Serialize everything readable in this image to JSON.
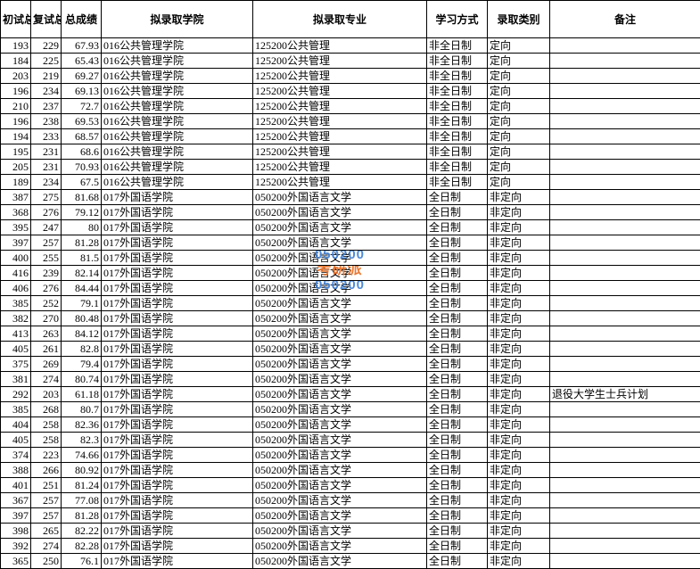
{
  "columns": [
    "初试总成绩",
    "复试总成绩",
    "总成绩",
    "拟录取学院",
    "拟录取专业",
    "学习方式",
    "录取类别",
    "备注"
  ],
  "watermark": {
    "blue_text": "050200",
    "orange_text": "考研派"
  },
  "rows": [
    {
      "c1": "193",
      "c2": "229",
      "c3": "67.93",
      "c4": "016公共管理学院",
      "c5": "125200公共管理",
      "c6": "非全日制",
      "c7": "定向",
      "c8": ""
    },
    {
      "c1": "184",
      "c2": "225",
      "c3": "65.43",
      "c4": "016公共管理学院",
      "c5": "125200公共管理",
      "c6": "非全日制",
      "c7": "定向",
      "c8": ""
    },
    {
      "c1": "203",
      "c2": "219",
      "c3": "69.27",
      "c4": "016公共管理学院",
      "c5": "125200公共管理",
      "c6": "非全日制",
      "c7": "定向",
      "c8": ""
    },
    {
      "c1": "196",
      "c2": "234",
      "c3": "69.13",
      "c4": "016公共管理学院",
      "c5": "125200公共管理",
      "c6": "非全日制",
      "c7": "定向",
      "c8": ""
    },
    {
      "c1": "210",
      "c2": "237",
      "c3": "72.7",
      "c4": "016公共管理学院",
      "c5": "125200公共管理",
      "c6": "非全日制",
      "c7": "定向",
      "c8": ""
    },
    {
      "c1": "196",
      "c2": "238",
      "c3": "69.53",
      "c4": "016公共管理学院",
      "c5": "125200公共管理",
      "c6": "非全日制",
      "c7": "定向",
      "c8": ""
    },
    {
      "c1": "194",
      "c2": "233",
      "c3": "68.57",
      "c4": "016公共管理学院",
      "c5": "125200公共管理",
      "c6": "非全日制",
      "c7": "定向",
      "c8": ""
    },
    {
      "c1": "195",
      "c2": "231",
      "c3": "68.6",
      "c4": "016公共管理学院",
      "c5": "125200公共管理",
      "c6": "非全日制",
      "c7": "定向",
      "c8": ""
    },
    {
      "c1": "205",
      "c2": "231",
      "c3": "70.93",
      "c4": "016公共管理学院",
      "c5": "125200公共管理",
      "c6": "非全日制",
      "c7": "定向",
      "c8": ""
    },
    {
      "c1": "189",
      "c2": "234",
      "c3": "67.5",
      "c4": "016公共管理学院",
      "c5": "125200公共管理",
      "c6": "非全日制",
      "c7": "定向",
      "c8": ""
    },
    {
      "c1": "387",
      "c2": "275",
      "c3": "81.68",
      "c4": "017外国语学院",
      "c5": "050200外国语言文学",
      "c6": "全日制",
      "c7": "非定向",
      "c8": ""
    },
    {
      "c1": "368",
      "c2": "276",
      "c3": "79.12",
      "c4": "017外国语学院",
      "c5": "050200外国语言文学",
      "c6": "全日制",
      "c7": "非定向",
      "c8": ""
    },
    {
      "c1": "395",
      "c2": "247",
      "c3": "80",
      "c4": "017外国语学院",
      "c5": "050200外国语言文学",
      "c6": "全日制",
      "c7": "非定向",
      "c8": ""
    },
    {
      "c1": "397",
      "c2": "257",
      "c3": "81.28",
      "c4": "017外国语学院",
      "c5": "050200外国语言文学",
      "c6": "全日制",
      "c7": "非定向",
      "c8": ""
    },
    {
      "c1": "400",
      "c2": "255",
      "c3": "81.5",
      "c4": "017外国语学院",
      "c5": "050200外国语言文学",
      "c6": "全日制",
      "c7": "非定向",
      "c8": "",
      "wm": "blue"
    },
    {
      "c1": "416",
      "c2": "239",
      "c3": "82.14",
      "c4": "017外国语学院",
      "c5": "050200外国语言文学",
      "c6": "全日制",
      "c7": "非定向",
      "c8": "",
      "wm": "orange"
    },
    {
      "c1": "406",
      "c2": "276",
      "c3": "84.44",
      "c4": "017外国语学院",
      "c5": "050200外国语言文学",
      "c6": "全日制",
      "c7": "非定向",
      "c8": "",
      "wm": "blue2"
    },
    {
      "c1": "385",
      "c2": "252",
      "c3": "79.1",
      "c4": "017外国语学院",
      "c5": "050200外国语言文学",
      "c6": "全日制",
      "c7": "非定向",
      "c8": ""
    },
    {
      "c1": "382",
      "c2": "270",
      "c3": "80.48",
      "c4": "017外国语学院",
      "c5": "050200外国语言文学",
      "c6": "全日制",
      "c7": "非定向",
      "c8": ""
    },
    {
      "c1": "413",
      "c2": "263",
      "c3": "84.12",
      "c4": "017外国语学院",
      "c5": "050200外国语言文学",
      "c6": "全日制",
      "c7": "非定向",
      "c8": ""
    },
    {
      "c1": "405",
      "c2": "261",
      "c3": "82.8",
      "c4": "017外国语学院",
      "c5": "050200外国语言文学",
      "c6": "全日制",
      "c7": "非定向",
      "c8": ""
    },
    {
      "c1": "375",
      "c2": "269",
      "c3": "79.4",
      "c4": "017外国语学院",
      "c5": "050200外国语言文学",
      "c6": "全日制",
      "c7": "非定向",
      "c8": ""
    },
    {
      "c1": "381",
      "c2": "274",
      "c3": "80.74",
      "c4": "017外国语学院",
      "c5": "050200外国语言文学",
      "c6": "全日制",
      "c7": "非定向",
      "c8": ""
    },
    {
      "c1": "292",
      "c2": "203",
      "c3": "61.18",
      "c4": "017外国语学院",
      "c5": "050200外国语言文学",
      "c6": "全日制",
      "c7": "非定向",
      "c8": "退役大学生士兵计划"
    },
    {
      "c1": "385",
      "c2": "268",
      "c3": "80.7",
      "c4": "017外国语学院",
      "c5": "050200外国语言文学",
      "c6": "全日制",
      "c7": "非定向",
      "c8": ""
    },
    {
      "c1": "404",
      "c2": "258",
      "c3": "82.36",
      "c4": "017外国语学院",
      "c5": "050200外国语言文学",
      "c6": "全日制",
      "c7": "非定向",
      "c8": ""
    },
    {
      "c1": "405",
      "c2": "258",
      "c3": "82.3",
      "c4": "017外国语学院",
      "c5": "050200外国语言文学",
      "c6": "全日制",
      "c7": "非定向",
      "c8": ""
    },
    {
      "c1": "374",
      "c2": "223",
      "c3": "74.66",
      "c4": "017外国语学院",
      "c5": "050200外国语言文学",
      "c6": "全日制",
      "c7": "非定向",
      "c8": ""
    },
    {
      "c1": "388",
      "c2": "266",
      "c3": "80.92",
      "c4": "017外国语学院",
      "c5": "050200外国语言文学",
      "c6": "全日制",
      "c7": "非定向",
      "c8": ""
    },
    {
      "c1": "401",
      "c2": "251",
      "c3": "81.24",
      "c4": "017外国语学院",
      "c5": "050200外国语言文学",
      "c6": "全日制",
      "c7": "非定向",
      "c8": ""
    },
    {
      "c1": "367",
      "c2": "257",
      "c3": "77.08",
      "c4": "017外国语学院",
      "c5": "050200外国语言文学",
      "c6": "全日制",
      "c7": "非定向",
      "c8": ""
    },
    {
      "c1": "397",
      "c2": "257",
      "c3": "81.28",
      "c4": "017外国语学院",
      "c5": "050200外国语言文学",
      "c6": "全日制",
      "c7": "非定向",
      "c8": ""
    },
    {
      "c1": "398",
      "c2": "265",
      "c3": "82.22",
      "c4": "017外国语学院",
      "c5": "050200外国语言文学",
      "c6": "全日制",
      "c7": "非定向",
      "c8": ""
    },
    {
      "c1": "392",
      "c2": "274",
      "c3": "82.28",
      "c4": "017外国语学院",
      "c5": "050200外国语言文学",
      "c6": "全日制",
      "c7": "非定向",
      "c8": ""
    },
    {
      "c1": "365",
      "c2": "250",
      "c3": "76.1",
      "c4": "017外国语学院",
      "c5": "050200外国语言文学",
      "c6": "全日制",
      "c7": "非定向",
      "c8": ""
    }
  ]
}
